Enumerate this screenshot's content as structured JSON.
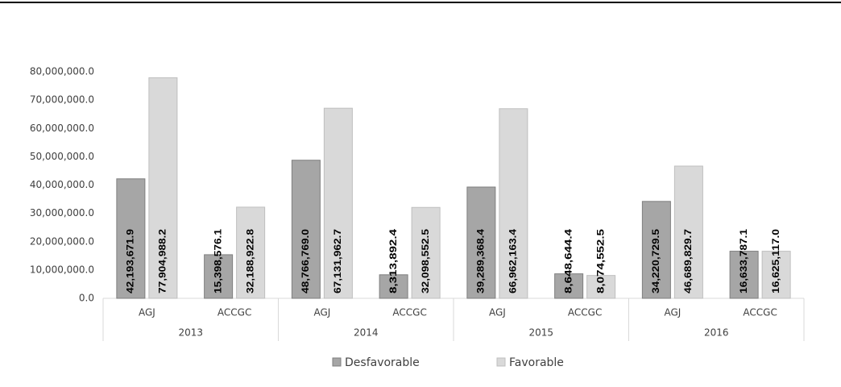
{
  "chart_data": {
    "type": "bar",
    "categories": [
      "AGJ",
      "ACCGC",
      "AGJ",
      "ACCGC",
      "AGJ",
      "ACCGC",
      "AGJ",
      "ACCGC"
    ],
    "category_groups": [
      "2013",
      "2014",
      "2015",
      "2016"
    ],
    "series": [
      {
        "name": "Desfavorable",
        "color": "#a6a6a6",
        "values": [
          42193671.9,
          15398576.1,
          48766769.0,
          8313892.4,
          39289368.4,
          8648644.4,
          34220729.5,
          16633787.1
        ],
        "value_labels": [
          "42,193,671.9",
          "15,398,576.1",
          "48,766,769.0",
          "8,313,892.4",
          "39,289,368.4",
          "8,648,644.4",
          "34,220,729.5",
          "16,633,787.1"
        ]
      },
      {
        "name": "Favorable",
        "color": "#d9d9d9",
        "values": [
          77904988.2,
          32188922.8,
          67131962.7,
          32098552.5,
          66962163.4,
          8074552.5,
          46689829.7,
          16625117.0
        ],
        "value_labels": [
          "77,904,988.2",
          "32,188,922.8",
          "67,131,962.7",
          "32,098,552.5",
          "66,962,163.4",
          "8,074,552.5",
          "46,689,829.7",
          "16,625,117.0"
        ]
      }
    ],
    "ylim": [
      0,
      80000000
    ],
    "yticks": [
      {
        "value": 0,
        "label": "0.0"
      },
      {
        "value": 10000000,
        "label": "10,000,000.0"
      },
      {
        "value": 20000000,
        "label": "20,000,000.0"
      },
      {
        "value": 30000000,
        "label": "30,000,000.0"
      },
      {
        "value": 40000000,
        "label": "40,000,000.0"
      },
      {
        "value": 50000000,
        "label": "50,000,000.0"
      },
      {
        "value": 60000000,
        "label": "60,000,000.0"
      },
      {
        "value": 70000000,
        "label": "70,000,000.0"
      },
      {
        "value": 80000000,
        "label": "80,000,000.0"
      }
    ],
    "grid": false
  }
}
